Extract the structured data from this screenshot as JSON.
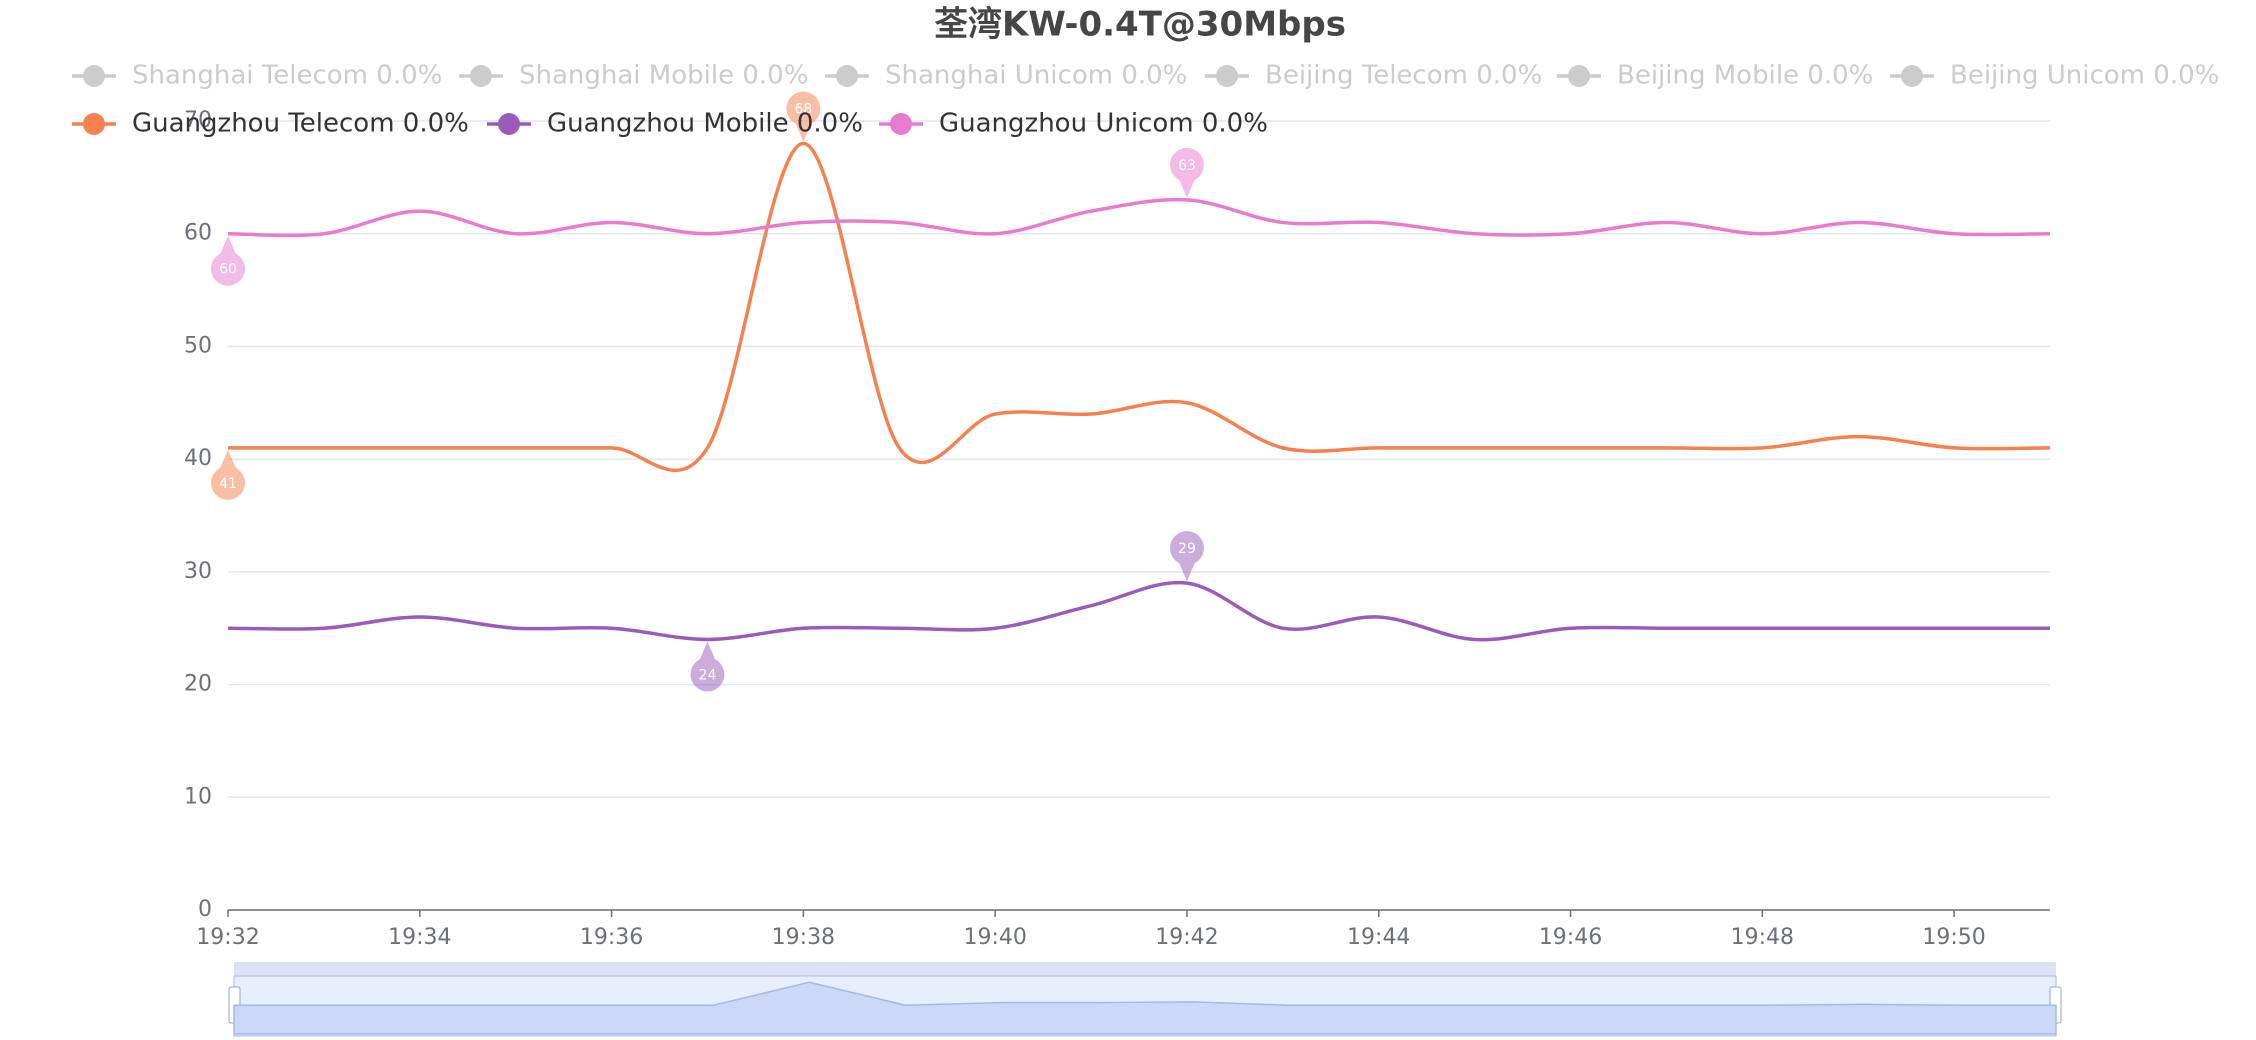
{
  "chart_data": {
    "type": "line",
    "title": "荃湾KW-0.4T@30Mbps",
    "legend_inactive": [
      "Shanghai Telecom 0.0%",
      "Shanghai Mobile 0.0%",
      "Shanghai Unicom 0.0%",
      "Beijing Telecom 0.0%",
      "Beijing Mobile 0.0%",
      "Beijing Unicom 0.0%"
    ],
    "categories": [
      "19:32",
      null,
      "19:34",
      null,
      "19:36",
      null,
      "19:38",
      null,
      "19:40",
      null,
      "19:42",
      null,
      "19:44",
      null,
      "19:46",
      null,
      "19:48",
      null,
      "19:50",
      null
    ],
    "series": [
      {
        "name": "Guangzhou Telecom 0.0%",
        "color": "#f5814f",
        "values": [
          41,
          41,
          41,
          41,
          41,
          41,
          68,
          41,
          44,
          44,
          45,
          41,
          41,
          41,
          41,
          41,
          41,
          42,
          41,
          41
        ]
      },
      {
        "name": "Guangzhou Mobile 0.0%",
        "color": "#9a5cb8",
        "values": [
          25,
          25,
          26,
          25,
          25,
          24,
          25,
          25,
          25,
          27,
          29,
          25,
          26,
          24,
          25,
          25,
          25,
          25,
          25,
          25
        ]
      },
      {
        "name": "Guangzhou Unicom 0.0%",
        "color": "#e87ad0",
        "values": [
          60,
          60,
          62,
          60,
          61,
          60,
          61,
          61,
          60,
          62,
          63,
          61,
          61,
          60,
          60,
          61,
          60,
          61,
          60,
          60
        ]
      }
    ],
    "ylim": [
      0,
      70
    ],
    "yticks": [
      0,
      10,
      20,
      30,
      40,
      50,
      60,
      70
    ],
    "grid": true
  }
}
